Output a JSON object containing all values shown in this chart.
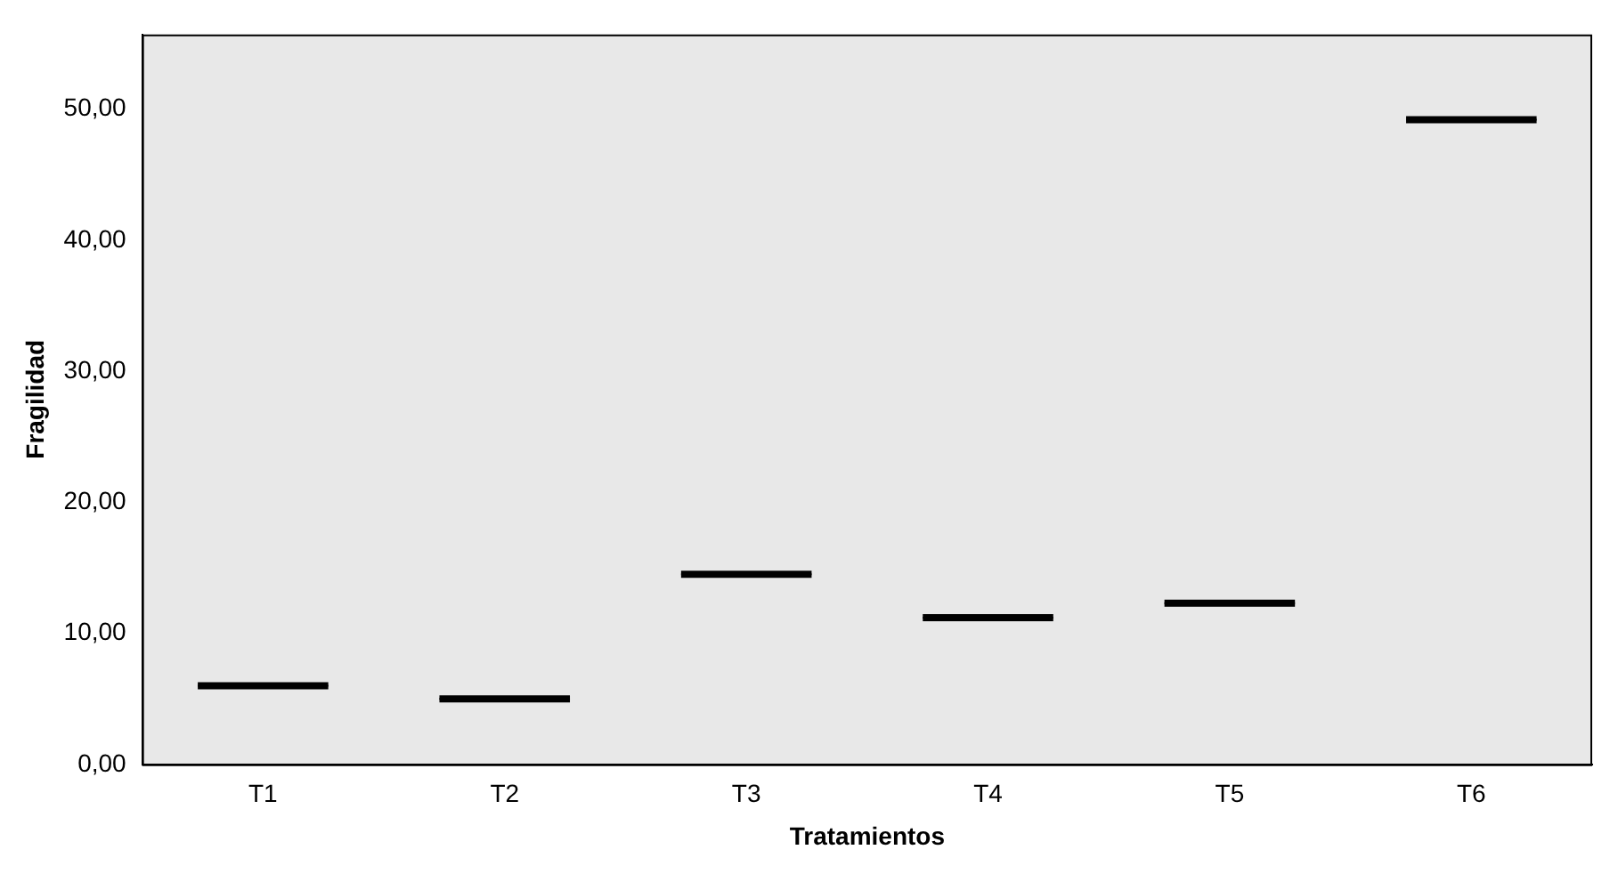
{
  "chart_data": {
    "type": "box",
    "xlabel": "Tratamientos",
    "ylabel": "Fragilidad",
    "categories": [
      "T1",
      "T2",
      "T3",
      "T4",
      "T5",
      "T6"
    ],
    "boxes": [
      {
        "low": 6.0,
        "q1": 6.0,
        "median": 6.0,
        "q3": 6.0,
        "high": 6.0
      },
      {
        "low": 5.0,
        "q1": 5.0,
        "median": 5.0,
        "q3": 5.0,
        "high": 5.0
      },
      {
        "low": 14.5,
        "q1": 14.5,
        "median": 14.5,
        "q3": 14.5,
        "high": 14.5
      },
      {
        "low": 11.2,
        "q1": 11.2,
        "median": 11.2,
        "q3": 11.2,
        "high": 11.2
      },
      {
        "low": 12.3,
        "q1": 12.3,
        "median": 12.3,
        "q3": 12.3,
        "high": 12.3
      },
      {
        "low": 49.2,
        "q1": 49.2,
        "median": 49.2,
        "q3": 49.2,
        "high": 49.2
      }
    ],
    "color": "#000000",
    "ylim": [
      0,
      55.7
    ],
    "yticks": [
      {
        "value": 0,
        "label": "0,00"
      },
      {
        "value": 10,
        "label": "10,00"
      },
      {
        "value": 20,
        "label": "20,00"
      },
      {
        "value": 30,
        "label": "30,00"
      },
      {
        "value": 40,
        "label": "40,00"
      },
      {
        "value": 50,
        "label": "50,00"
      }
    ],
    "grid": false,
    "legend": false
  }
}
